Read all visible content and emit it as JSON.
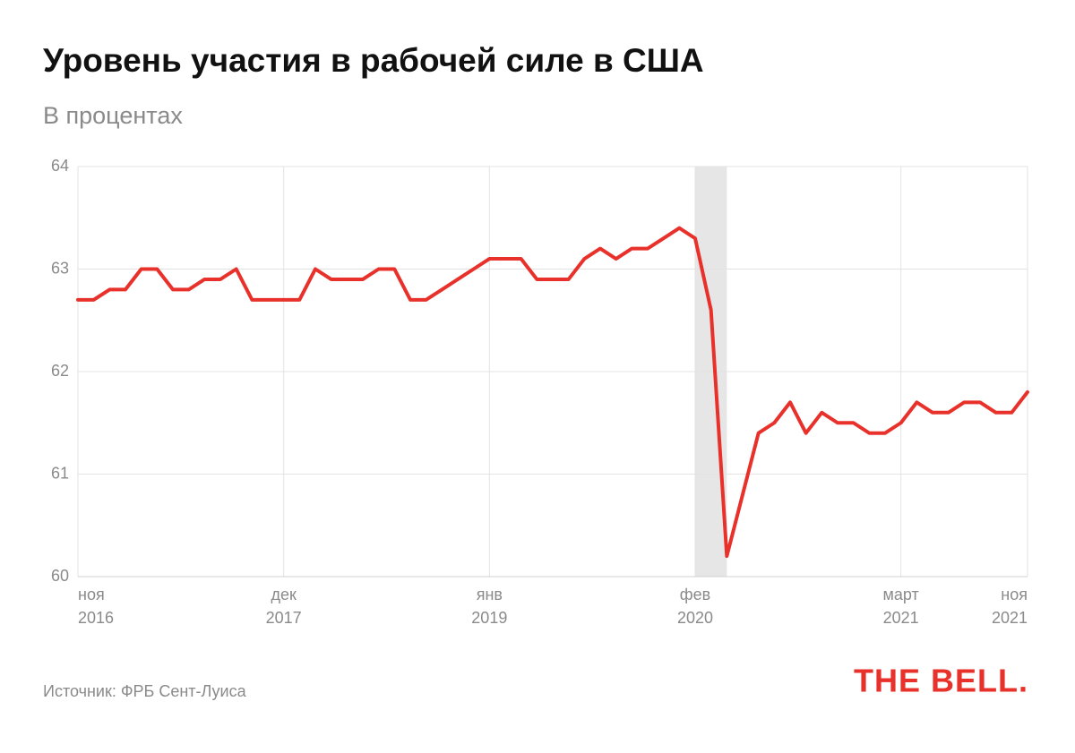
{
  "chart_data": {
    "type": "line",
    "title": "Уровень участия в рабочей силе в США",
    "subtitle": "В процентах",
    "source": "Источник: ФРБ Сент-Луиса",
    "logo": "THE BELL.",
    "categories": [
      "ноя 2016",
      null,
      null,
      null,
      null,
      null,
      null,
      null,
      null,
      null,
      null,
      null,
      null,
      "дек 2017",
      null,
      null,
      null,
      null,
      null,
      null,
      null,
      null,
      null,
      null,
      null,
      null,
      "янв 2019",
      null,
      null,
      null,
      null,
      null,
      null,
      null,
      null,
      null,
      null,
      null,
      null,
      "фев 2020",
      null,
      null,
      null,
      null,
      null,
      null,
      null,
      null,
      null,
      null,
      null,
      null,
      "март 2021",
      null,
      null,
      null,
      null,
      null,
      null,
      null,
      "ноя 2021"
    ],
    "series": [
      {
        "name": "Уровень участия",
        "color": "#e8312a",
        "values": [
          62.7,
          62.7,
          62.8,
          62.8,
          63.0,
          63.0,
          62.8,
          62.8,
          62.9,
          62.9,
          63.0,
          62.7,
          62.7,
          62.7,
          62.7,
          63.0,
          62.9,
          62.9,
          62.9,
          63.0,
          63.0,
          62.7,
          62.7,
          62.8,
          62.9,
          63.0,
          63.1,
          63.1,
          63.1,
          62.9,
          62.9,
          62.9,
          63.1,
          63.2,
          63.1,
          63.2,
          63.2,
          63.3,
          63.4,
          63.3,
          62.6,
          60.2,
          60.8,
          61.4,
          61.5,
          61.7,
          61.4,
          61.6,
          61.5,
          61.5,
          61.4,
          61.4,
          61.5,
          61.7,
          61.6,
          61.6,
          61.7,
          61.7,
          61.6,
          61.6,
          61.8
        ]
      }
    ],
    "shaded": [
      39,
      41
    ],
    "shade_color": "#e6e6e6",
    "ylim": [
      60,
      64
    ],
    "yticks": [
      60,
      61,
      62,
      63,
      64
    ],
    "grid": true
  }
}
